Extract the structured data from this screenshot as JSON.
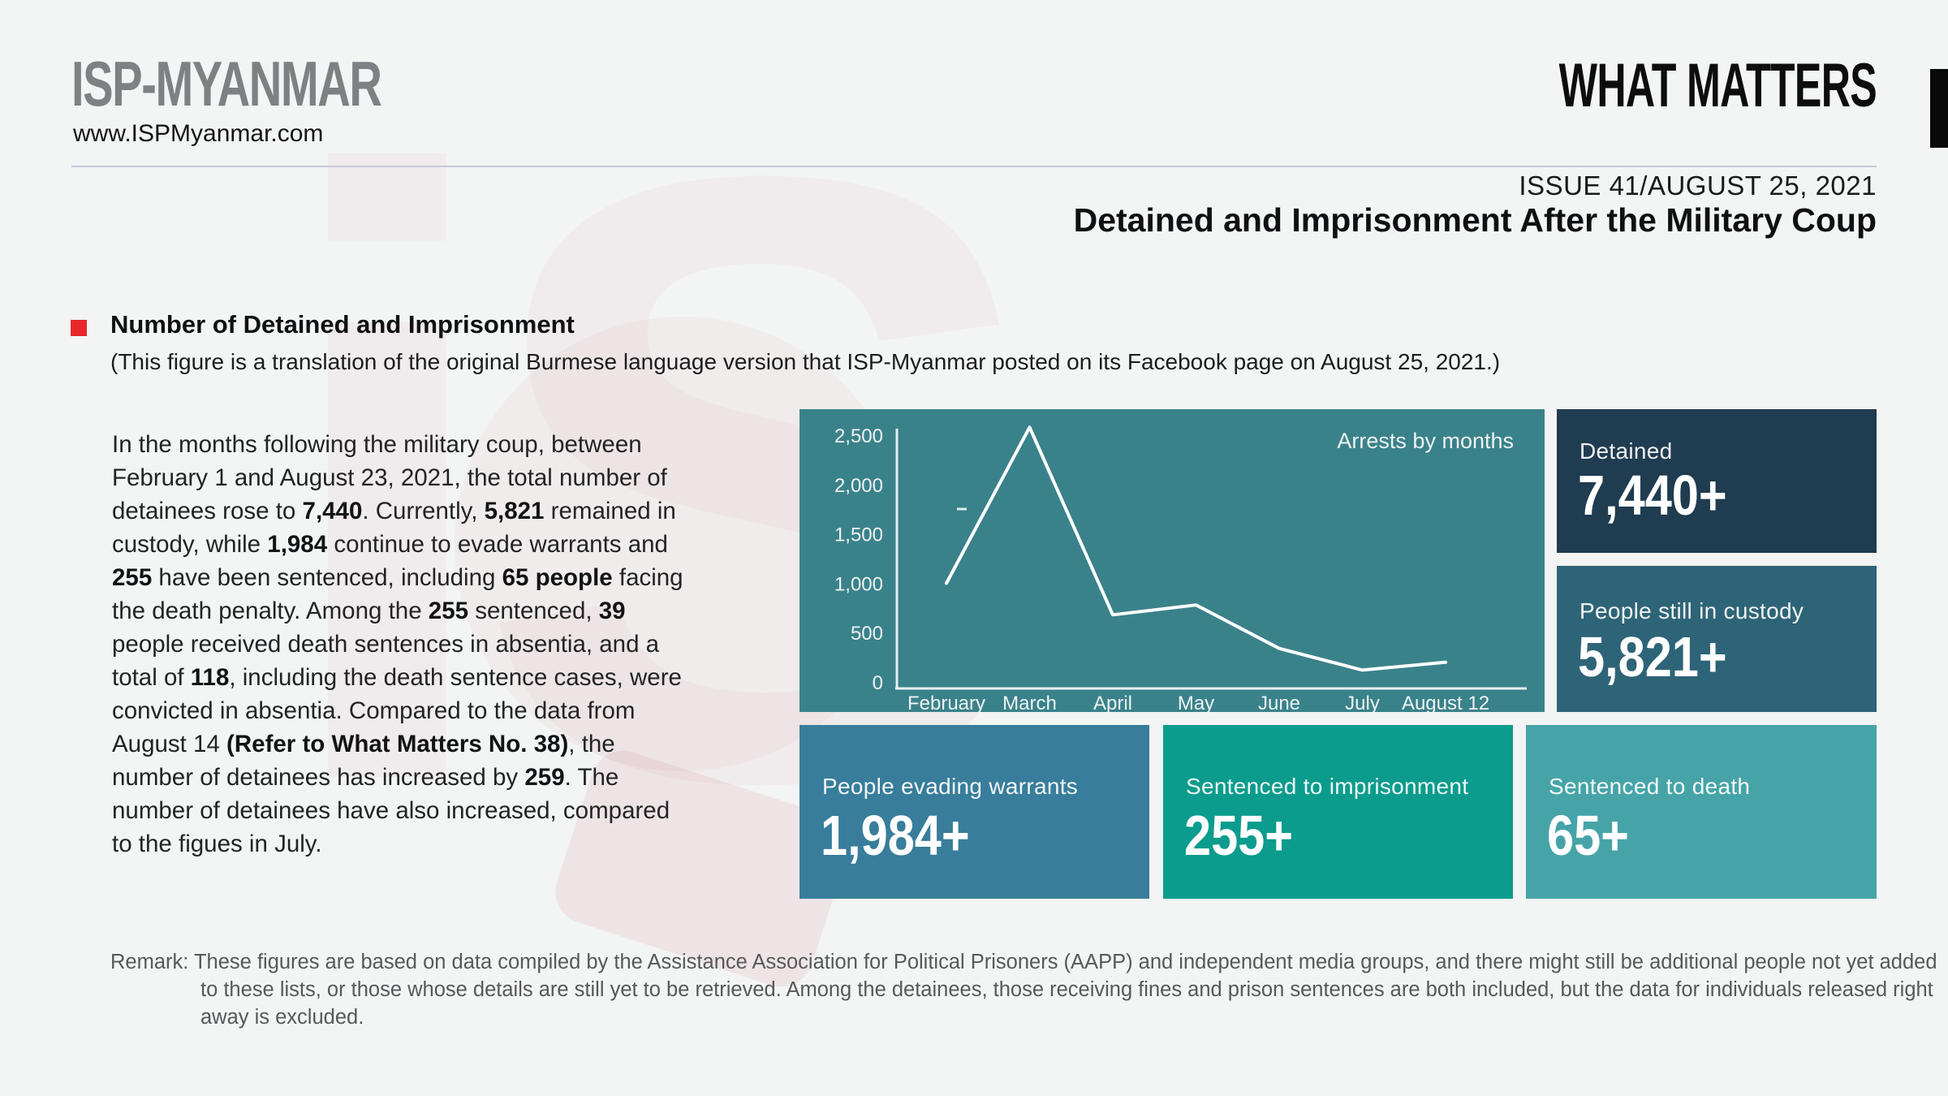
{
  "colors": {
    "page_bg": "#f3f4f4",
    "divider": "#c7c8da",
    "accent_red": "#e8272d",
    "header_black": "#0a0a0a",
    "logo_gray": "#7e8083",
    "remark_gray": "#57585a"
  },
  "header": {
    "logo_text": "ISP-MYANMAR",
    "logo_url": "www.ISPMyanmar.com",
    "brand": "WHAT MATTERS",
    "issue_line": "ISSUE 41/AUGUST 25, 2021",
    "doc_title": "Detained and Imprisonment After the Military Coup"
  },
  "section": {
    "heading": "Number of Detained and Imprisonment",
    "subheading": "(This figure is a translation of the original Burmese language version that ISP-Myanmar posted on its Facebook page on August 25, 2021.)"
  },
  "body": {
    "segments": [
      {
        "text": "In the months following the military coup, between February 1 and August 23, 2021, the total number of detainees rose to "
      },
      {
        "text": "7,440",
        "bold": true
      },
      {
        "text": ". Currently, "
      },
      {
        "text": "5,821",
        "bold": true
      },
      {
        "text": " remained in custody, while "
      },
      {
        "text": "1,984",
        "bold": true
      },
      {
        "text": " continue to evade warrants and "
      },
      {
        "text": "255",
        "bold": true
      },
      {
        "text": " have been sentenced, including "
      },
      {
        "text": "65 people",
        "bold": true
      },
      {
        "text": " facing the death penalty. Among the "
      },
      {
        "text": "255",
        "bold": true
      },
      {
        "text": " sentenced, "
      },
      {
        "text": "39",
        "bold": true
      },
      {
        "text": " people received death sentences in absentia, and a total of "
      },
      {
        "text": "118",
        "bold": true
      },
      {
        "text": ", including the death sentence cases, were convicted in absentia. Compared to the data from August 14 "
      },
      {
        "text": "(Refer to What Matters No. 38)",
        "bold": true
      },
      {
        "text": ", the number of detainees has increased by "
      },
      {
        "text": "259",
        "bold": true
      },
      {
        "text": ". The number of detainees have also increased, compared to the figues in July."
      }
    ]
  },
  "chart_data": {
    "type": "line",
    "title": "Arrests by months",
    "categories": [
      "February",
      "March",
      "April",
      "May",
      "June",
      "July",
      "August 12"
    ],
    "values": [
      1000,
      2580,
      680,
      780,
      340,
      120,
      200
    ],
    "ylim": [
      0,
      2500
    ],
    "yticks": [
      0,
      500,
      1000,
      1500,
      2000,
      2500
    ],
    "ytick_labels": [
      "0",
      "500",
      "1,000",
      "1,500",
      "2,000",
      "2,500"
    ],
    "xlabel": "",
    "ylabel": "",
    "grid": false,
    "legend": "none",
    "bg": "#3a828a",
    "line_color": "#ffffff"
  },
  "stat_cards": {
    "detained": {
      "label": "Detained",
      "value": "7,440+",
      "color": "#1f3c50"
    },
    "custody": {
      "label": "People still in custody",
      "value": "5,821+",
      "color": "#2e6477"
    },
    "evading": {
      "label": "People evading warrants",
      "value": "1,984+",
      "color": "#387d9b"
    },
    "imprisonment": {
      "label": "Sentenced to imprisonment",
      "value": "255+",
      "color": "#0b9c8d"
    },
    "death": {
      "label": "Sentenced to death",
      "value": "65+",
      "color": "#46a4a8"
    }
  },
  "remark": {
    "label": "Remark:",
    "text": " These figures are based on data compiled by the Assistance Association for Political Prisoners (AAPP) and independent media groups, and there might still be additional people not yet added to these lists, or those whose details are still yet to be retrieved. Among the detainees, those receiving fines and prison sentences are both included, but the data for individuals released right away is excluded."
  }
}
